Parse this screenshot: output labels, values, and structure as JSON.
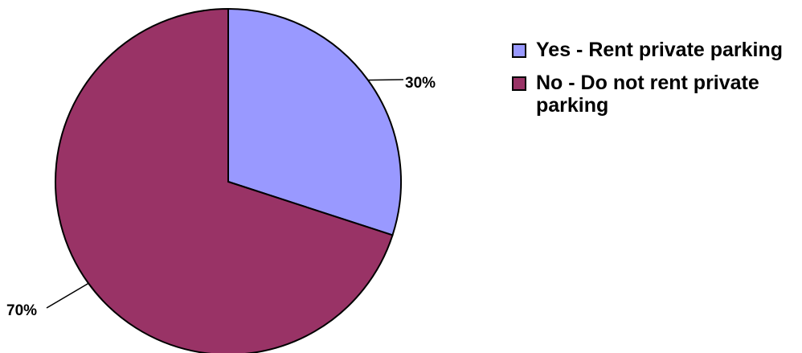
{
  "chart_data": {
    "type": "pie",
    "start_angle_deg": 0,
    "direction": "clockwise",
    "slices": [
      {
        "label": "Yes - Rent private parking",
        "value": 30,
        "display": "30%",
        "color": "#9999ff"
      },
      {
        "label": "No - Do not rent private parking",
        "value": 70,
        "display": "70%",
        "color": "#993366"
      }
    ],
    "legend_position": "right"
  }
}
